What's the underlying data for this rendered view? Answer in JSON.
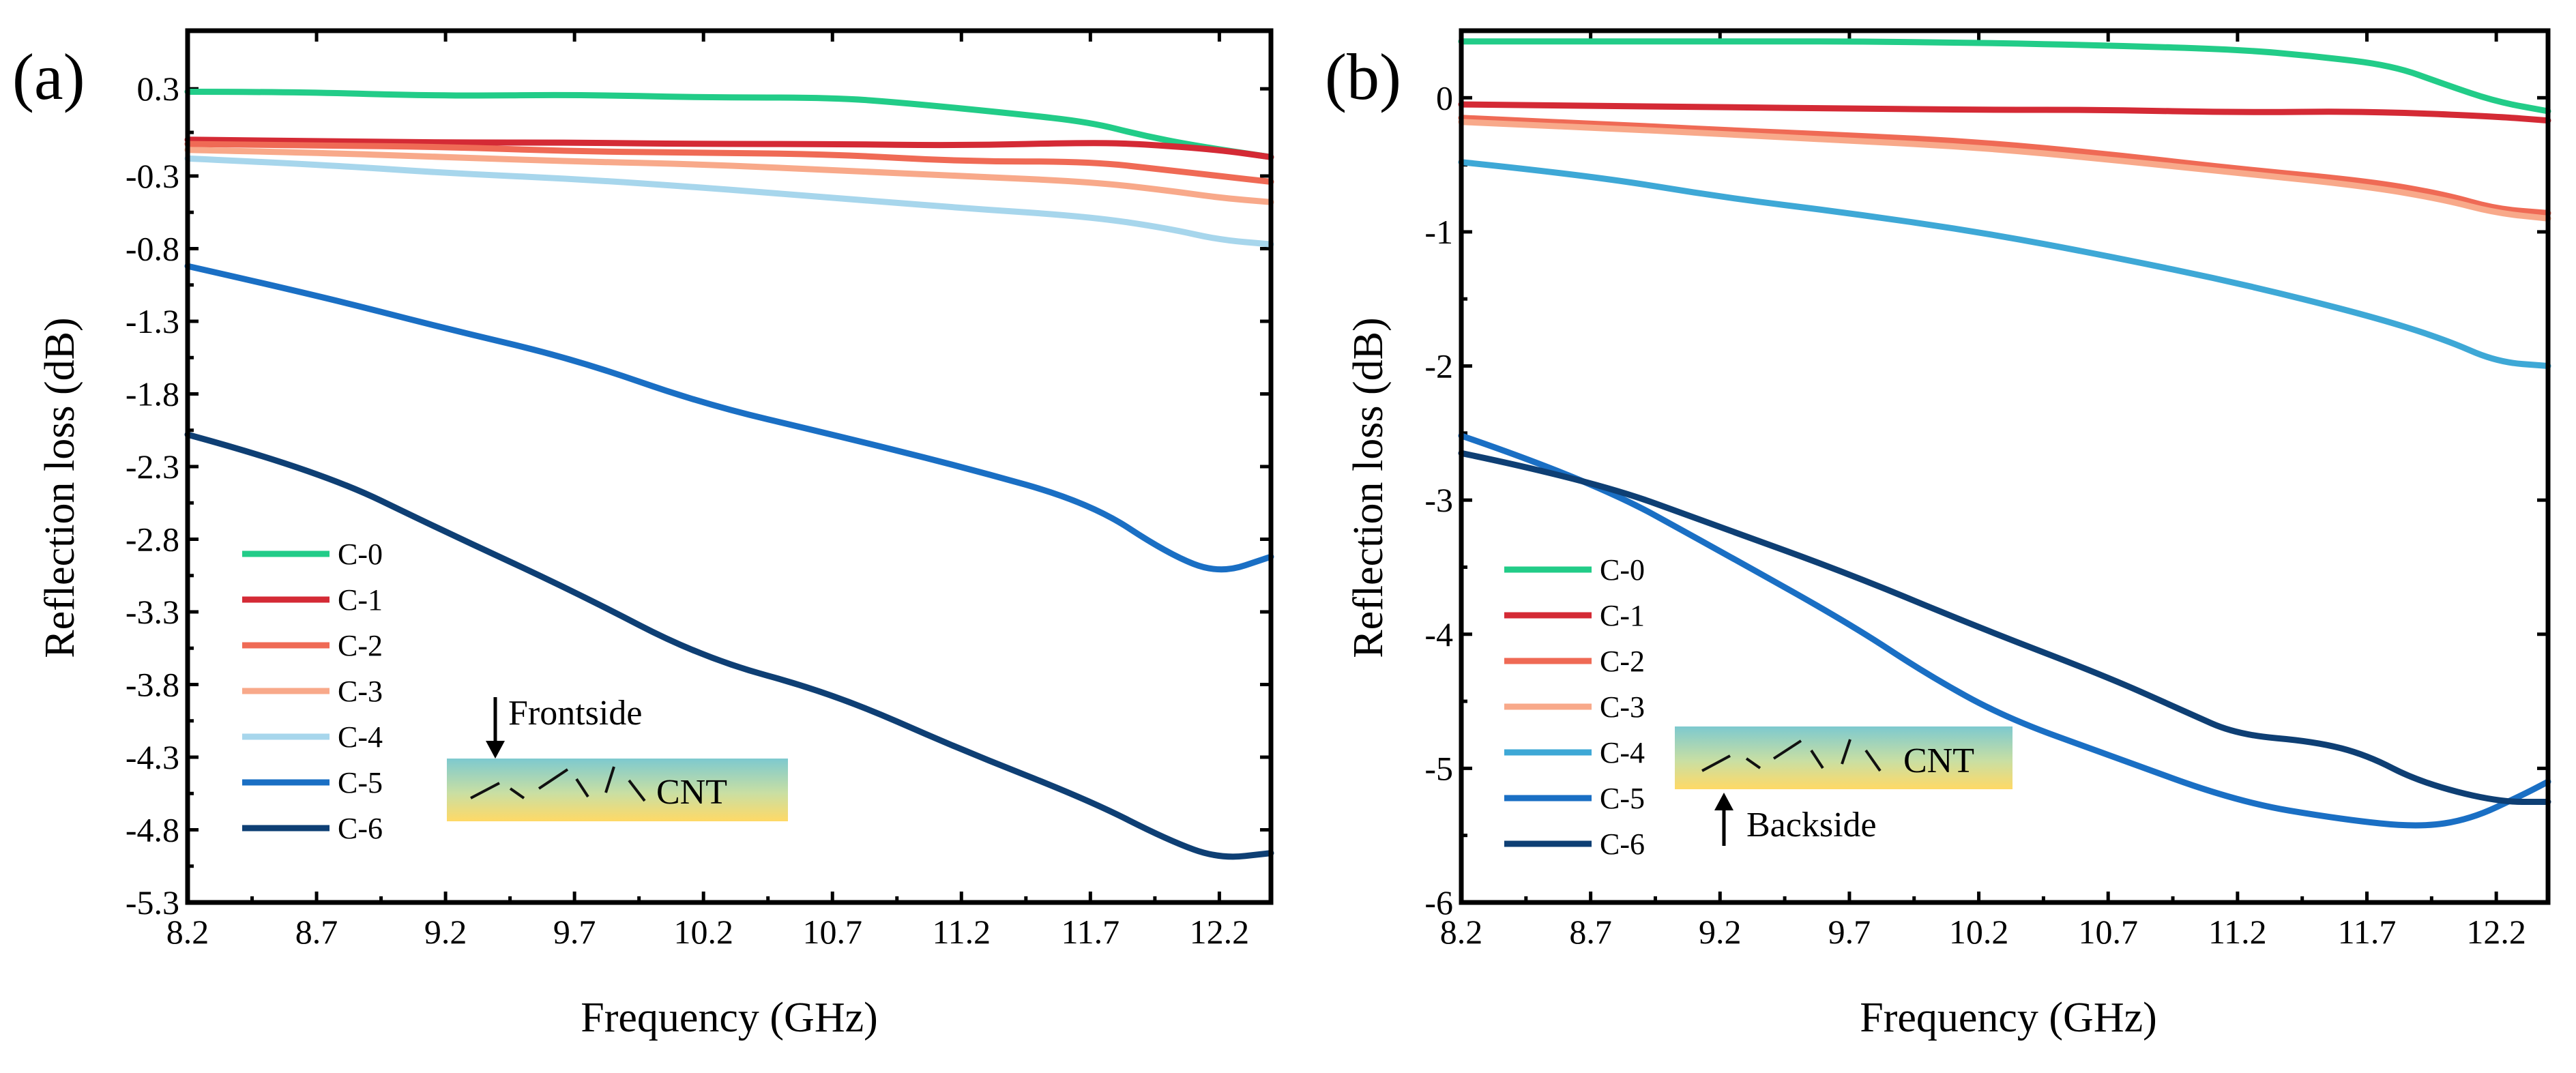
{
  "colors": {
    "C-0": "#22cc88",
    "C-1": "#d42a35",
    "C-2": "#ef6a55",
    "C-3": "#f8a98a",
    "C-4": "#a7d6ec",
    "C-5": "#1a6fc4",
    "C-6": "#0e3f74"
  },
  "colors_b": {
    "C-4": "#3ea8d6",
    "C-5": "#1a6fc4",
    "C-6": "#0e3f74"
  },
  "chart_data": [
    {
      "type": "line",
      "panel_label": "(a)",
      "title": "",
      "xlabel": "Frequency (GHz)",
      "ylabel": "Reflection loss (dB)",
      "xlim": [
        8.2,
        12.4
      ],
      "ylim": [
        -5.3,
        0.7
      ],
      "xticks": [
        8.2,
        8.7,
        9.2,
        9.7,
        10.2,
        10.7,
        11.2,
        11.7,
        12.2
      ],
      "xtick_labels": [
        "8.2",
        "8.7",
        "9.2",
        "9.7",
        "10.2",
        "10.7",
        "11.2",
        "11.7",
        "12.2"
      ],
      "yticks": [
        0.3,
        -0.3,
        -0.8,
        -1.3,
        -1.8,
        -2.3,
        -2.8,
        -3.3,
        -3.8,
        -4.3,
        -4.8,
        -5.3
      ],
      "ytick_labels": [
        "0.3",
        "-0.3",
        "-0.8",
        "-1.3",
        "-1.8",
        "-2.3",
        "-2.8",
        "-3.3",
        "-3.8",
        "-4.3",
        "-4.8",
        "-5.3"
      ],
      "legend_position": "lower-left",
      "inset": {
        "arrow_label": "Frontside",
        "material_label": "CNT",
        "arrow_direction": "down"
      },
      "series": [
        {
          "name": "C-0",
          "x": [
            8.2,
            8.6,
            9.2,
            9.7,
            10.2,
            10.7,
            11.0,
            11.4,
            11.7,
            11.9,
            12.1,
            12.4
          ],
          "values": [
            0.28,
            0.28,
            0.25,
            0.26,
            0.24,
            0.24,
            0.2,
            0.13,
            0.07,
            -0.02,
            -0.09,
            -0.17
          ]
        },
        {
          "name": "C-1",
          "x": [
            8.2,
            8.7,
            9.2,
            9.7,
            10.2,
            10.7,
            11.2,
            11.7,
            11.9,
            12.2,
            12.4
          ],
          "values": [
            -0.05,
            -0.06,
            -0.07,
            -0.07,
            -0.08,
            -0.08,
            -0.09,
            -0.07,
            -0.08,
            -0.12,
            -0.17
          ]
        },
        {
          "name": "C-2",
          "x": [
            8.2,
            8.7,
            9.2,
            9.7,
            10.2,
            10.7,
            11.2,
            11.7,
            12.0,
            12.2,
            12.4
          ],
          "values": [
            -0.08,
            -0.09,
            -0.1,
            -0.13,
            -0.14,
            -0.15,
            -0.2,
            -0.2,
            -0.26,
            -0.3,
            -0.34
          ]
        },
        {
          "name": "C-3",
          "x": [
            8.2,
            8.7,
            9.2,
            9.7,
            10.2,
            10.7,
            11.2,
            11.7,
            12.0,
            12.2,
            12.4
          ],
          "values": [
            -0.12,
            -0.14,
            -0.17,
            -0.2,
            -0.22,
            -0.26,
            -0.3,
            -0.34,
            -0.4,
            -0.45,
            -0.48
          ]
        },
        {
          "name": "C-4",
          "x": [
            8.2,
            8.7,
            9.2,
            9.7,
            10.2,
            10.7,
            11.2,
            11.7,
            12.0,
            12.2,
            12.4
          ],
          "values": [
            -0.18,
            -0.22,
            -0.28,
            -0.32,
            -0.38,
            -0.45,
            -0.52,
            -0.58,
            -0.66,
            -0.74,
            -0.77
          ]
        },
        {
          "name": "C-5",
          "x": [
            8.2,
            8.7,
            9.2,
            9.7,
            10.2,
            10.7,
            11.2,
            11.7,
            12.0,
            12.2,
            12.4
          ],
          "values": [
            -0.92,
            -1.12,
            -1.35,
            -1.56,
            -1.87,
            -2.08,
            -2.3,
            -2.55,
            -2.9,
            -3.04,
            -2.92
          ]
        },
        {
          "name": "C-6",
          "x": [
            8.2,
            8.7,
            9.2,
            9.7,
            10.2,
            10.7,
            11.2,
            11.7,
            12.0,
            12.2,
            12.4
          ],
          "values": [
            -2.08,
            -2.32,
            -2.75,
            -3.16,
            -3.62,
            -3.86,
            -4.25,
            -4.6,
            -4.87,
            -5.0,
            -4.96
          ]
        }
      ]
    },
    {
      "type": "line",
      "panel_label": "(b)",
      "title": "",
      "xlabel": "Frequency (GHz)",
      "ylabel": "Reflection loss (dB)",
      "xlim": [
        8.2,
        12.4
      ],
      "ylim": [
        -6.0,
        0.5
      ],
      "xticks": [
        8.2,
        8.7,
        9.2,
        9.7,
        10.2,
        10.7,
        11.2,
        11.7,
        12.2
      ],
      "xtick_labels": [
        "8.2",
        "8.7",
        "9.2",
        "9.7",
        "10.2",
        "10.7",
        "11.2",
        "11.7",
        "12.2"
      ],
      "yticks": [
        0,
        -1,
        -2,
        -3,
        -4,
        -5,
        -6
      ],
      "ytick_labels": [
        "0",
        "-1",
        "-2",
        "-3",
        "-4",
        "-5",
        "-6"
      ],
      "legend_position": "lower-left",
      "inset": {
        "arrow_label": "Backside",
        "material_label": "CNT",
        "arrow_direction": "up"
      },
      "series": [
        {
          "name": "C-0",
          "x": [
            8.2,
            8.7,
            9.2,
            9.7,
            10.2,
            10.7,
            11.2,
            11.5,
            11.8,
            12.0,
            12.2,
            12.4
          ],
          "values": [
            0.42,
            0.42,
            0.42,
            0.42,
            0.41,
            0.39,
            0.36,
            0.31,
            0.24,
            0.1,
            -0.03,
            -0.1
          ]
        },
        {
          "name": "C-1",
          "x": [
            8.2,
            8.7,
            9.2,
            9.7,
            10.2,
            10.7,
            11.2,
            11.7,
            12.2,
            12.4
          ],
          "values": [
            -0.05,
            -0.06,
            -0.07,
            -0.08,
            -0.09,
            -0.09,
            -0.11,
            -0.1,
            -0.14,
            -0.17
          ]
        },
        {
          "name": "C-2",
          "x": [
            8.2,
            8.7,
            9.2,
            9.7,
            10.2,
            10.7,
            11.2,
            11.7,
            12.0,
            12.2,
            12.4
          ],
          "values": [
            -0.15,
            -0.19,
            -0.24,
            -0.28,
            -0.33,
            -0.42,
            -0.53,
            -0.62,
            -0.72,
            -0.83,
            -0.86
          ]
        },
        {
          "name": "C-3",
          "x": [
            8.2,
            8.7,
            9.2,
            9.7,
            10.2,
            10.7,
            11.2,
            11.7,
            12.0,
            12.2,
            12.4
          ],
          "values": [
            -0.18,
            -0.22,
            -0.27,
            -0.32,
            -0.37,
            -0.46,
            -0.56,
            -0.66,
            -0.76,
            -0.86,
            -0.9
          ]
        },
        {
          "name": "C-4",
          "x": [
            8.2,
            8.7,
            9.2,
            9.7,
            10.2,
            10.7,
            11.2,
            11.7,
            12.0,
            12.2,
            12.4
          ],
          "values": [
            -0.48,
            -0.58,
            -0.74,
            -0.86,
            -1.0,
            -1.18,
            -1.38,
            -1.62,
            -1.8,
            -1.97,
            -2.0
          ]
        },
        {
          "name": "C-5",
          "x": [
            8.2,
            8.7,
            9.2,
            9.7,
            10.0,
            10.3,
            10.7,
            11.2,
            11.6,
            11.9,
            12.1,
            12.3,
            12.4
          ],
          "values": [
            -2.52,
            -2.85,
            -3.38,
            -3.92,
            -4.3,
            -4.62,
            -4.9,
            -5.25,
            -5.38,
            -5.44,
            -5.38,
            -5.2,
            -5.1
          ]
        },
        {
          "name": "C-6",
          "x": [
            8.2,
            8.7,
            9.2,
            9.7,
            10.2,
            10.7,
            11.0,
            11.2,
            11.5,
            11.7,
            11.9,
            12.2,
            12.4
          ],
          "values": [
            -2.65,
            -2.85,
            -3.2,
            -3.55,
            -3.95,
            -4.32,
            -4.58,
            -4.75,
            -4.8,
            -4.9,
            -5.1,
            -5.25,
            -5.25
          ]
        }
      ]
    }
  ]
}
